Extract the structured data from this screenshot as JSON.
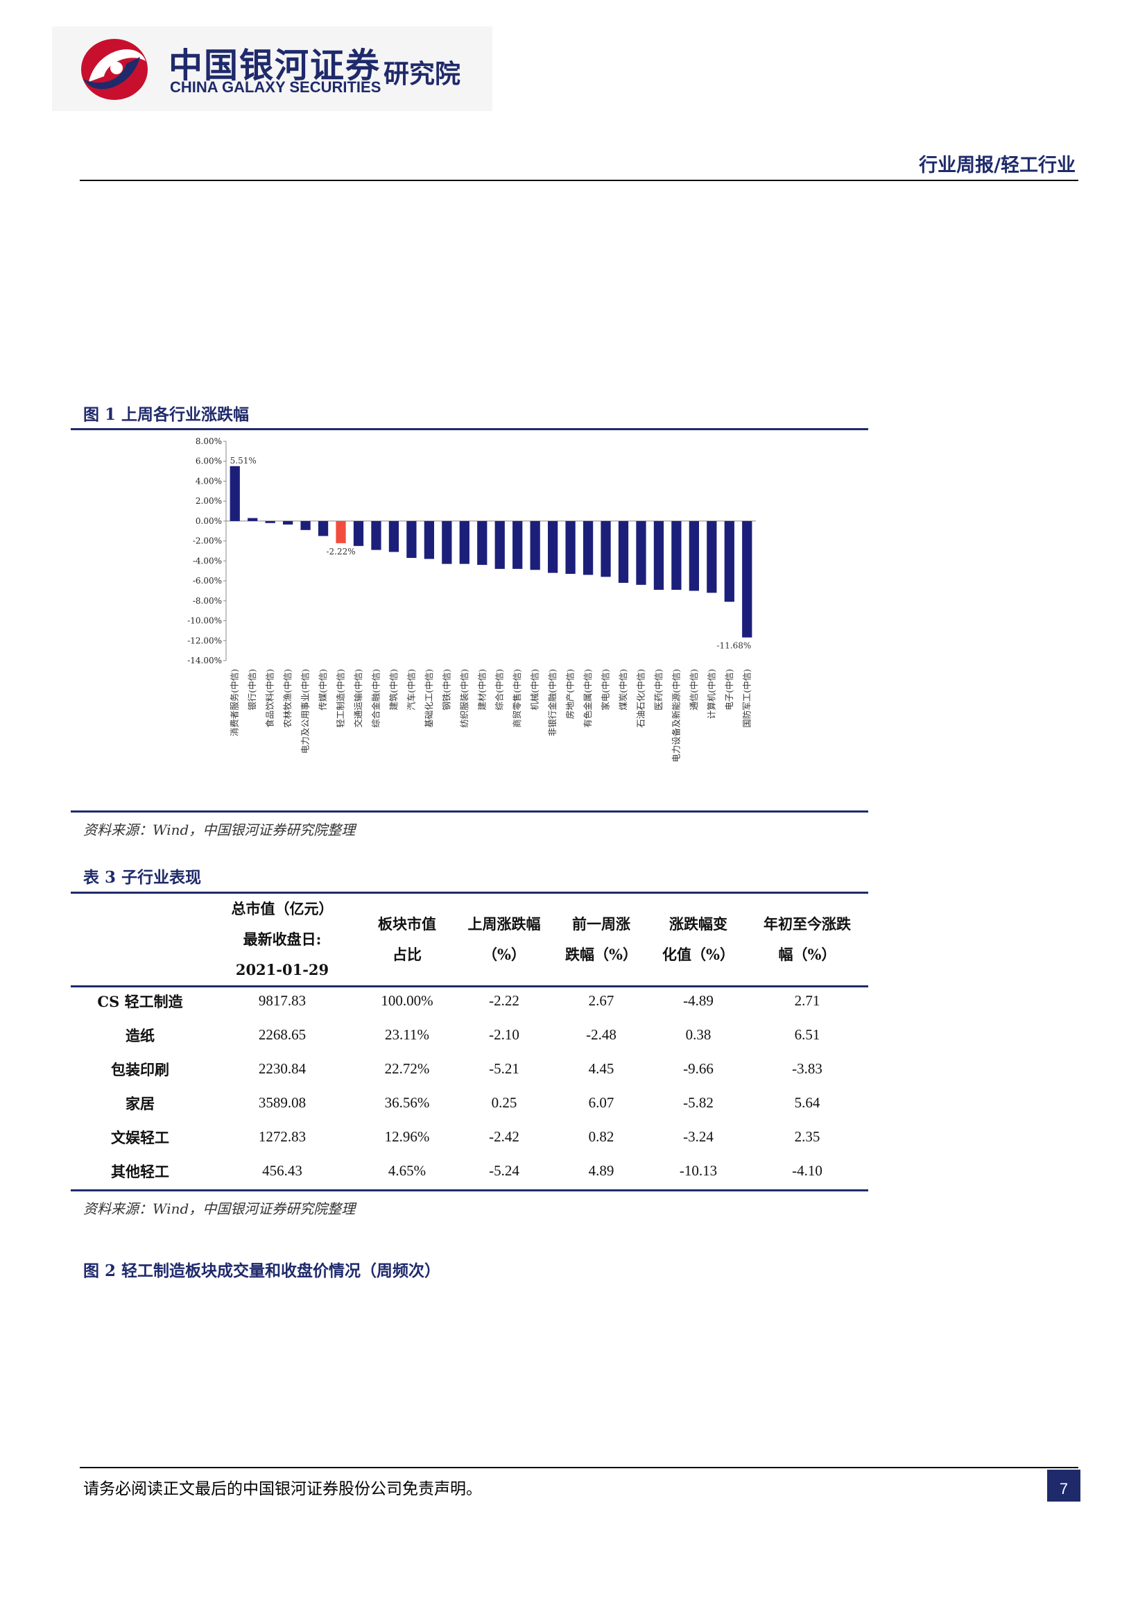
{
  "header": {
    "logo_cn": "中国银河证券",
    "logo_en": "CHINA GALAXY SECURITIES",
    "institute": "研究院",
    "report_tag": "行业周报/轻工行业"
  },
  "figure1": {
    "caption": "图 1 上周各行业涨跌幅",
    "source": "资料来源：Wind，中国银河证券研究院整理"
  },
  "chart_data": {
    "type": "bar",
    "categories": [
      "消费者服务(中信)",
      "银行(中信)",
      "食品饮料(中信)",
      "农林牧渔(中信)",
      "电力及公用事业(中信)",
      "传媒(中信)",
      "轻工制造(中信)",
      "交通运输(中信)",
      "综合金融(中信)",
      "建筑(中信)",
      "汽车(中信)",
      "基础化工(中信)",
      "钢铁(中信)",
      "纺织服装(中信)",
      "建材(中信)",
      "综合(中信)",
      "商贸零售(中信)",
      "机械(中信)",
      "非银行金融(中信)",
      "房地产(中信)",
      "有色金属(中信)",
      "家电(中信)",
      "煤炭(中信)",
      "石油石化(中信)",
      "医药(中信)",
      "电力设备及新能源(中信)",
      "通信(中信)",
      "计算机(中信)",
      "电子(中信)",
      "国防军工(中信)"
    ],
    "values": [
      5.51,
      0.3,
      -0.2,
      -0.35,
      -0.9,
      -1.5,
      -2.22,
      -2.5,
      -2.9,
      -3.1,
      -3.7,
      -3.8,
      -4.3,
      -4.3,
      -4.4,
      -4.8,
      -4.8,
      -4.9,
      -5.2,
      -5.3,
      -5.4,
      -5.6,
      -6.2,
      -6.4,
      -6.9,
      -6.9,
      -7.0,
      -7.2,
      -8.1,
      -11.68
    ],
    "highlight_category": "轻工制造(中信)",
    "highlight_color": "#f24c3d",
    "bar_color": "#1c1f7a",
    "data_labels": [
      {
        "category": "消费者服务(中信)",
        "text": "5.51%"
      },
      {
        "category": "轻工制造(中信)",
        "text": "-2.22%"
      },
      {
        "category": "国防军工(中信)",
        "text": "-11.68%"
      }
    ],
    "ylim": [
      -14,
      8
    ],
    "yticks": [
      "8.00%",
      "6.00%",
      "4.00%",
      "2.00%",
      "0.00%",
      "-2.00%",
      "-4.00%",
      "-6.00%",
      "-8.00%",
      "-10.00%",
      "-12.00%",
      "-14.00%"
    ],
    "title": "",
    "xlabel": "",
    "ylabel": ""
  },
  "table3": {
    "caption": "表 3 子行业表现",
    "headers": [
      [
        "",
        ""
      ],
      [
        "总市值（亿元）",
        "最新收盘日:",
        "2021-01-29"
      ],
      [
        "板块市值",
        "占比"
      ],
      [
        "上周涨跌幅",
        "（%）"
      ],
      [
        "前一周涨",
        "跌幅（%）"
      ],
      [
        "涨跌幅变",
        "化值（%）"
      ],
      [
        "年初至今涨跌",
        "幅（%）"
      ]
    ],
    "rows": [
      [
        "CS 轻工制造",
        "9817.83",
        "100.00%",
        "-2.22",
        "2.67",
        "-4.89",
        "2.71"
      ],
      [
        "造纸",
        "2268.65",
        "23.11%",
        "-2.10",
        "-2.48",
        "0.38",
        "6.51"
      ],
      [
        "包装印刷",
        "2230.84",
        "22.72%",
        "-5.21",
        "4.45",
        "-9.66",
        "-3.83"
      ],
      [
        "家居",
        "3589.08",
        "36.56%",
        "0.25",
        "6.07",
        "-5.82",
        "5.64"
      ],
      [
        "文娱轻工",
        "1272.83",
        "12.96%",
        "-2.42",
        "0.82",
        "-3.24",
        "2.35"
      ],
      [
        "其他轻工",
        "456.43",
        "4.65%",
        "-5.24",
        "4.89",
        "-10.13",
        "-4.10"
      ]
    ],
    "source": "资料来源：Wind，中国银河证券研究院整理"
  },
  "figure2": {
    "caption": "图 2 轻工制造板块成交量和收盘价情况（周频次）"
  },
  "footer": {
    "disclaimer": "请务必阅读正文最后的中国银河证券股份公司免责声明。",
    "page_number": "7"
  }
}
